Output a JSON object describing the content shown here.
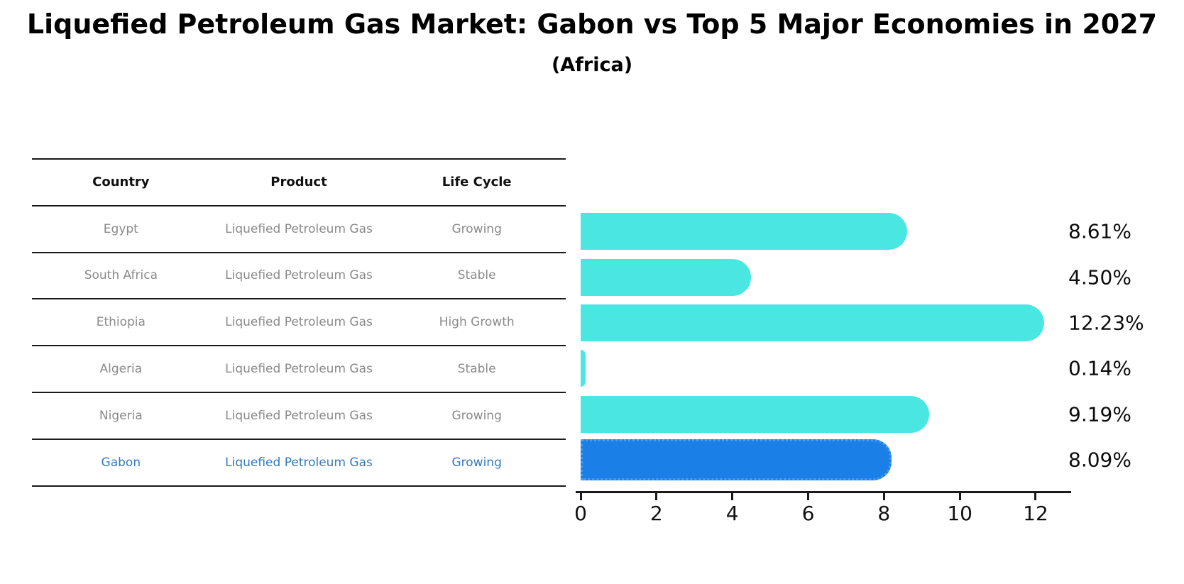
{
  "title": "Liquefied Petroleum Gas Market: Gabon vs Top 5 Major Economies in 2027",
  "subtitle": "(Africa)",
  "table": {
    "headers": [
      "Country",
      "Product",
      "Life Cycle"
    ],
    "rows": [
      {
        "country": "Egypt",
        "product": "Liquefied Petroleum Gas",
        "life_cycle": "Growing",
        "highlight": false
      },
      {
        "country": "South Africa",
        "product": "Liquefied Petroleum Gas",
        "life_cycle": "Stable",
        "highlight": false
      },
      {
        "country": "Ethiopia",
        "product": "Liquefied Petroleum Gas",
        "life_cycle": "High Growth",
        "highlight": false
      },
      {
        "country": "Algeria",
        "product": "Liquefied Petroleum Gas",
        "life_cycle": "Stable",
        "highlight": false
      },
      {
        "country": "Nigeria",
        "product": "Liquefied Petroleum Gas",
        "life_cycle": "Growing",
        "highlight": false
      },
      {
        "country": "Gabon",
        "product": "Liquefied Petroleum Gas",
        "life_cycle": "Growing",
        "highlight": true
      }
    ]
  },
  "chart_data": {
    "type": "bar",
    "orientation": "horizontal",
    "title": "Liquefied Petroleum Gas Market: Gabon vs Top 5 Major Economies in 2027 (Africa)",
    "categories": [
      "Egypt",
      "South Africa",
      "Ethiopia",
      "Algeria",
      "Nigeria",
      "Gabon"
    ],
    "values": [
      8.61,
      4.5,
      12.23,
      0.14,
      9.19,
      8.09
    ],
    "value_labels": [
      "8.61%",
      "4.50%",
      "12.23%",
      "0.14%",
      "9.19%",
      "8.09%"
    ],
    "highlight_index": 5,
    "bar_color": "#4ae7e2",
    "highlight_color": "#1b7fe8",
    "highlight_text_color": "#3579be",
    "xlim": [
      0,
      12.88
    ],
    "x_ticks": [
      0,
      2,
      4,
      6,
      8,
      10,
      12
    ],
    "grid": false,
    "legend": "none"
  }
}
